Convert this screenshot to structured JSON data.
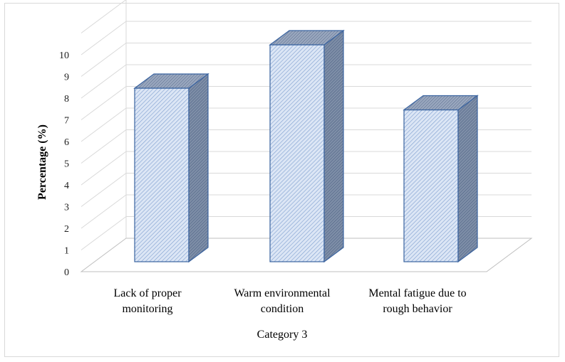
{
  "chart_data": {
    "type": "bar",
    "style": "3d-column",
    "categories": [
      [
        "Lack of proper",
        "monitoring"
      ],
      [
        "Warm environmental",
        "condition"
      ],
      [
        "Mental fatigue due to",
        "rough behavior"
      ]
    ],
    "values": [
      8,
      10,
      7
    ],
    "xlabel": "Category 3",
    "ylabel": "Percentage (%)",
    "ylim": [
      0,
      10
    ],
    "yticks": [
      "0",
      "1",
      "2",
      "3",
      "4",
      "5",
      "6",
      "7",
      "8",
      "9",
      "10"
    ],
    "grid": true,
    "legend": "none",
    "colors": {
      "bar_fill": "#dce6f5",
      "bar_hatch": "#4f81bd",
      "bar_side": "#6c7f99",
      "bar_top": "#8d9bb0",
      "bar_stroke": "#3b64a0",
      "grid": "#d9d9d9"
    }
  }
}
